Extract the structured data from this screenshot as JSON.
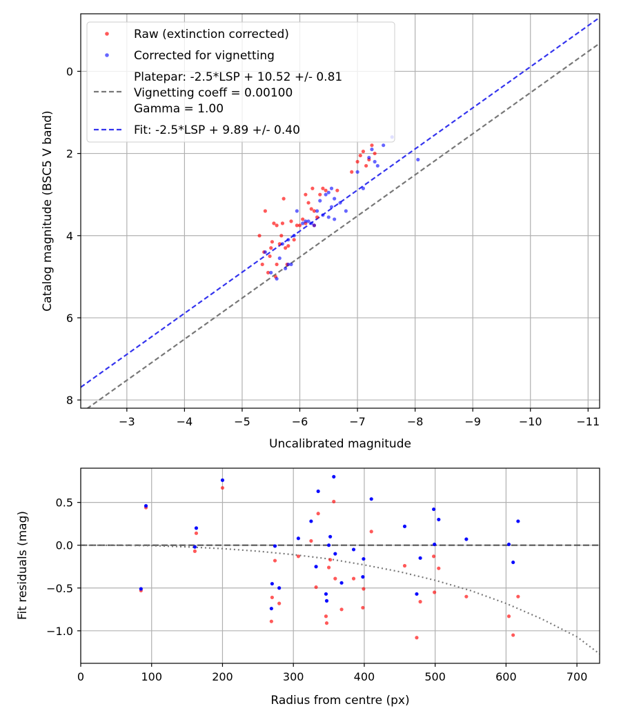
{
  "chart_data": [
    {
      "type": "scatter",
      "xlabel": "Uncalibrated magnitude",
      "ylabel": "Catalog magnitude (BSC5 V band)",
      "xlim": [
        -2.2,
        -11.2
      ],
      "ylim": [
        8.2,
        -1.4
      ],
      "x_ticks": [
        -3,
        -4,
        -5,
        -6,
        -7,
        -8,
        -9,
        -10,
        -11
      ],
      "x_tick_labels": [
        "−3",
        "−4",
        "−5",
        "−6",
        "−7",
        "−8",
        "−9",
        "−10",
        "−11"
      ],
      "y_ticks": [
        0,
        2,
        4,
        6,
        8
      ],
      "y_tick_labels": [
        "0",
        "2",
        "4",
        "6",
        "8"
      ],
      "grid": true,
      "legend": {
        "position": "top-left",
        "entries": [
          {
            "label": "Raw (extinction corrected)",
            "kind": "point",
            "color": "#ff0000"
          },
          {
            "label": "Corrected for vignetting",
            "kind": "point",
            "color": "#0000ff"
          },
          {
            "label": "Platepar: -2.5*LSP + 10.52 +/- 0.81",
            "kind": "line",
            "color": "#777777"
          },
          {
            "label": "Vignetting coeff = 0.00100",
            "kind": "text"
          },
          {
            "label": "Gamma = 1.00",
            "kind": "text"
          },
          {
            "label": "Fit: -2.5*LSP + 9.89 +/- 0.40",
            "kind": "line",
            "color": "#3333ee"
          }
        ]
      },
      "series": [
        {
          "name": "Raw (extinction corrected)",
          "color": "#ff0000",
          "points": [
            [
              -5.3,
              4.0
            ],
            [
              -5.35,
              4.7
            ],
            [
              -5.38,
              4.4
            ],
            [
              -5.4,
              3.4
            ],
            [
              -5.45,
              4.9
            ],
            [
              -5.48,
              4.5
            ],
            [
              -5.5,
              4.3
            ],
            [
              -5.52,
              4.15
            ],
            [
              -5.55,
              3.7
            ],
            [
              -5.58,
              5.0
            ],
            [
              -5.6,
              4.7
            ],
            [
              -5.6,
              3.75
            ],
            [
              -5.65,
              4.2
            ],
            [
              -5.68,
              4.0
            ],
            [
              -5.7,
              3.7
            ],
            [
              -5.72,
              3.1
            ],
            [
              -5.75,
              4.3
            ],
            [
              -5.78,
              4.7
            ],
            [
              -5.8,
              4.25
            ],
            [
              -5.85,
              3.65
            ],
            [
              -5.9,
              4.1
            ],
            [
              -5.95,
              3.75
            ],
            [
              -6.0,
              3.75
            ],
            [
              -6.05,
              3.6
            ],
            [
              -6.1,
              3.0
            ],
            [
              -6.1,
              3.7
            ],
            [
              -6.15,
              3.2
            ],
            [
              -6.2,
              3.35
            ],
            [
              -6.22,
              2.85
            ],
            [
              -6.25,
              3.4
            ],
            [
              -6.25,
              3.75
            ],
            [
              -6.3,
              3.55
            ],
            [
              -6.35,
              3.0
            ],
            [
              -6.4,
              2.85
            ],
            [
              -6.45,
              2.9
            ],
            [
              -6.65,
              2.9
            ],
            [
              -6.9,
              2.45
            ],
            [
              -7.0,
              2.2
            ],
            [
              -7.05,
              2.05
            ],
            [
              -7.1,
              1.95
            ],
            [
              -7.15,
              2.3
            ],
            [
              -7.2,
              2.15
            ],
            [
              -7.25,
              1.8
            ],
            [
              -7.3,
              2.0
            ]
          ]
        },
        {
          "name": "Corrected for vignetting",
          "color": "#0000ff",
          "points": [
            [
              -5.4,
              4.4
            ],
            [
              -5.5,
              4.9
            ],
            [
              -5.6,
              5.05
            ],
            [
              -5.65,
              4.55
            ],
            [
              -5.7,
              4.2
            ],
            [
              -5.75,
              4.8
            ],
            [
              -5.8,
              4.7
            ],
            [
              -5.8,
              4.1
            ],
            [
              -5.85,
              4.7
            ],
            [
              -5.9,
              4.0
            ],
            [
              -5.95,
              3.4
            ],
            [
              -6.05,
              3.7
            ],
            [
              -6.1,
              3.65
            ],
            [
              -6.15,
              3.65
            ],
            [
              -6.2,
              3.7
            ],
            [
              -6.25,
              3.75
            ],
            [
              -6.3,
              3.4
            ],
            [
              -6.35,
              3.15
            ],
            [
              -6.4,
              3.5
            ],
            [
              -6.45,
              3.0
            ],
            [
              -6.5,
              2.95
            ],
            [
              -6.5,
              3.55
            ],
            [
              -6.55,
              2.85
            ],
            [
              -6.55,
              3.3
            ],
            [
              -6.6,
              3.6
            ],
            [
              -6.6,
              3.1
            ],
            [
              -6.7,
              3.2
            ],
            [
              -6.8,
              3.4
            ],
            [
              -7.0,
              2.45
            ],
            [
              -7.1,
              2.85
            ],
            [
              -7.2,
              2.1
            ],
            [
              -7.25,
              1.9
            ],
            [
              -7.3,
              2.2
            ],
            [
              -7.35,
              2.3
            ],
            [
              -7.45,
              1.8
            ],
            [
              -7.6,
              1.6
            ],
            [
              -8.05,
              2.15
            ]
          ]
        }
      ],
      "lines": [
        {
          "name": "Platepar: -2.5*LSP + 10.52 +/- 0.81",
          "color": "#777777",
          "x": [
            -2.2,
            -11.2
          ],
          "y": [
            8.32,
            -0.68
          ]
        },
        {
          "name": "Fit: -2.5*LSP + 9.89 +/- 0.40",
          "color": "#3333ee",
          "x": [
            -2.2,
            -11.2
          ],
          "y": [
            7.69,
            -1.31
          ]
        }
      ]
    },
    {
      "type": "scatter",
      "xlabel": "Radius from centre (px)",
      "ylabel": "Fit residuals (mag)",
      "xlim": [
        0,
        732
      ],
      "ylim": [
        -1.38,
        0.9
      ],
      "x_ticks": [
        0,
        100,
        200,
        300,
        400,
        500,
        600,
        700
      ],
      "x_tick_labels": [
        "0",
        "100",
        "200",
        "300",
        "400",
        "500",
        "600",
        "700"
      ],
      "y_ticks": [
        0.5,
        0.0,
        -0.5,
        -1.0
      ],
      "y_tick_labels": [
        "0.5",
        "0.0",
        "−0.5",
        "−1.0"
      ],
      "grid": true,
      "series": [
        {
          "name": "Raw (extinction corrected)",
          "color": "#ff0000",
          "points": [
            [
              85,
              -0.53
            ],
            [
              92,
              0.44
            ],
            [
              161,
              -0.07
            ],
            [
              163,
              0.14
            ],
            [
              200,
              0.67
            ],
            [
              269,
              -0.89
            ],
            [
              270,
              -0.61
            ],
            [
              274,
              -0.18
            ],
            [
              280,
              -0.68
            ],
            [
              307,
              -0.13
            ],
            [
              325,
              0.05
            ],
            [
              332,
              -0.49
            ],
            [
              335,
              0.37
            ],
            [
              346,
              -0.83
            ],
            [
              347,
              -0.91
            ],
            [
              350,
              -0.26
            ],
            [
              352,
              -0.17
            ],
            [
              357,
              0.51
            ],
            [
              359,
              -0.39
            ],
            [
              368,
              -0.75
            ],
            [
              385,
              -0.39
            ],
            [
              398,
              -0.73
            ],
            [
              399,
              -0.51
            ],
            [
              410,
              0.16
            ],
            [
              457,
              -0.24
            ],
            [
              474,
              -1.08
            ],
            [
              479,
              -0.66
            ],
            [
              498,
              -0.13
            ],
            [
              499,
              -0.55
            ],
            [
              505,
              -0.27
            ],
            [
              544,
              -0.6
            ],
            [
              604,
              -0.83
            ],
            [
              610,
              -1.05
            ],
            [
              617,
              -0.6
            ]
          ]
        },
        {
          "name": "Corrected for vignetting",
          "color": "#0000ff",
          "points": [
            [
              85,
              -0.51
            ],
            [
              92,
              0.46
            ],
            [
              161,
              -0.02
            ],
            [
              163,
              0.2
            ],
            [
              200,
              0.76
            ],
            [
              269,
              -0.74
            ],
            [
              270,
              -0.45
            ],
            [
              274,
              -0.01
            ],
            [
              280,
              -0.5
            ],
            [
              307,
              0.08
            ],
            [
              325,
              0.28
            ],
            [
              332,
              -0.25
            ],
            [
              335,
              0.63
            ],
            [
              346,
              -0.57
            ],
            [
              347,
              -0.65
            ],
            [
              350,
              0.0
            ],
            [
              352,
              0.1
            ],
            [
              357,
              0.8
            ],
            [
              359,
              -0.1
            ],
            [
              368,
              -0.44
            ],
            [
              385,
              -0.05
            ],
            [
              398,
              -0.37
            ],
            [
              399,
              -0.16
            ],
            [
              410,
              0.54
            ],
            [
              457,
              0.22
            ],
            [
              474,
              -0.57
            ],
            [
              479,
              -0.15
            ],
            [
              498,
              0.42
            ],
            [
              499,
              0.01
            ],
            [
              505,
              0.3
            ],
            [
              544,
              0.07
            ],
            [
              604,
              0.01
            ],
            [
              610,
              -0.2
            ],
            [
              617,
              0.28
            ]
          ]
        }
      ],
      "lines": [
        {
          "name": "zero",
          "color": "#555555",
          "style": "dashed",
          "x": [
            0,
            732
          ],
          "y": [
            0,
            0
          ]
        },
        {
          "name": "vignetting",
          "color": "#777777",
          "style": "dotted",
          "x": [
            0,
            50,
            100,
            150,
            200,
            250,
            300,
            350,
            400,
            450,
            500,
            550,
            600,
            650,
            700,
            732
          ],
          "y": [
            0,
            -0.001,
            -0.005,
            -0.02,
            -0.04,
            -0.07,
            -0.11,
            -0.16,
            -0.23,
            -0.31,
            -0.41,
            -0.53,
            -0.68,
            -0.86,
            -1.07,
            -1.27
          ]
        }
      ]
    }
  ]
}
